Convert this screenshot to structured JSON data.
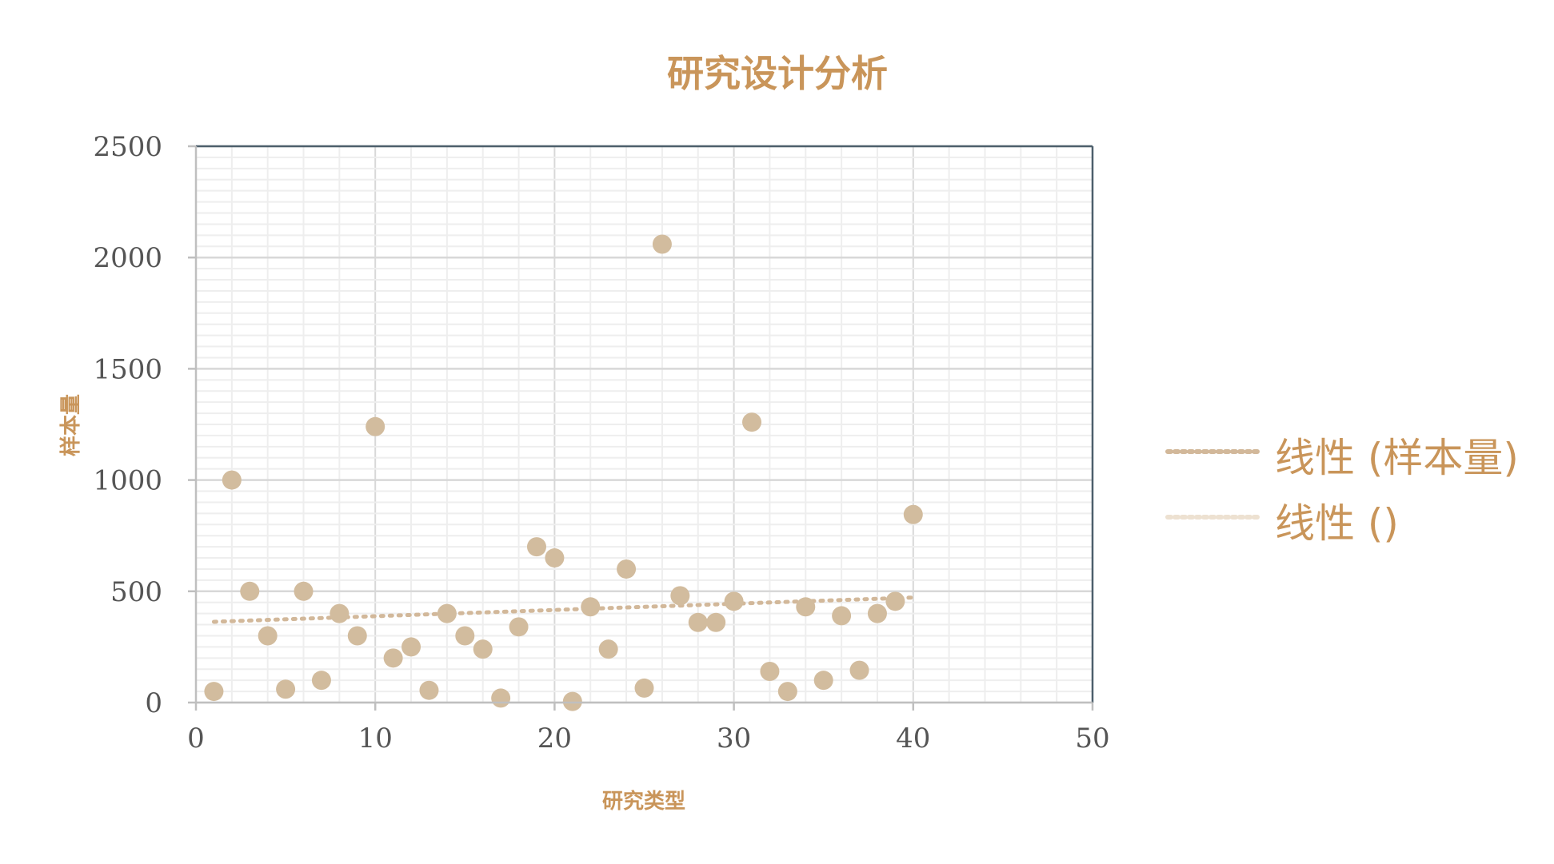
{
  "chart_data": {
    "type": "scatter",
    "title": "研究设计分析",
    "xlabel": "研究类型",
    "ylabel": "样本量",
    "xlim": [
      0,
      50
    ],
    "ylim": [
      0,
      2500
    ],
    "x_ticks": [
      "0",
      "10",
      "20",
      "30",
      "40",
      "50"
    ],
    "y_ticks": [
      "0",
      "500",
      "1000",
      "1500",
      "2000",
      "2500"
    ],
    "x_tick_values": [
      0,
      10,
      20,
      30,
      40,
      50
    ],
    "y_tick_values": [
      0,
      500,
      1000,
      1500,
      2000,
      2500
    ],
    "grid": true,
    "legend_position": "right",
    "series": [
      {
        "x": [
          1,
          2,
          3,
          4,
          5,
          6,
          7,
          8,
          9,
          10,
          11,
          12,
          13,
          14,
          15,
          16,
          17,
          18,
          19,
          20,
          21,
          22,
          23,
          24,
          25,
          26,
          27,
          28,
          29,
          30,
          31,
          32,
          33,
          34,
          35,
          36,
          37,
          38,
          39,
          40
        ],
        "y": [
          50,
          1000,
          500,
          300,
          60,
          500,
          100,
          400,
          300,
          1240,
          200,
          250,
          55,
          400,
          300,
          240,
          20,
          340,
          700,
          650,
          5,
          430,
          240,
          600,
          65,
          2060,
          480,
          360,
          360,
          455,
          1260,
          140,
          50,
          430,
          100,
          390,
          145,
          400,
          455,
          845
        ],
        "color": "#d2bc9e"
      }
    ],
    "trendlines": [
      {
        "name": "线性 (样本量)",
        "x_range": [
          1,
          40
        ],
        "y_start": 363,
        "y_end": 472,
        "color": "#d2b89a"
      },
      {
        "name": "线性 ()",
        "color": "#ede1d1"
      }
    ]
  },
  "colors": {
    "accent": "#c9955a",
    "tick_text": "#555555",
    "axis": "#4d5f6c",
    "grid_major": "#d8d8d8",
    "grid_minor": "#eeeeee"
  }
}
